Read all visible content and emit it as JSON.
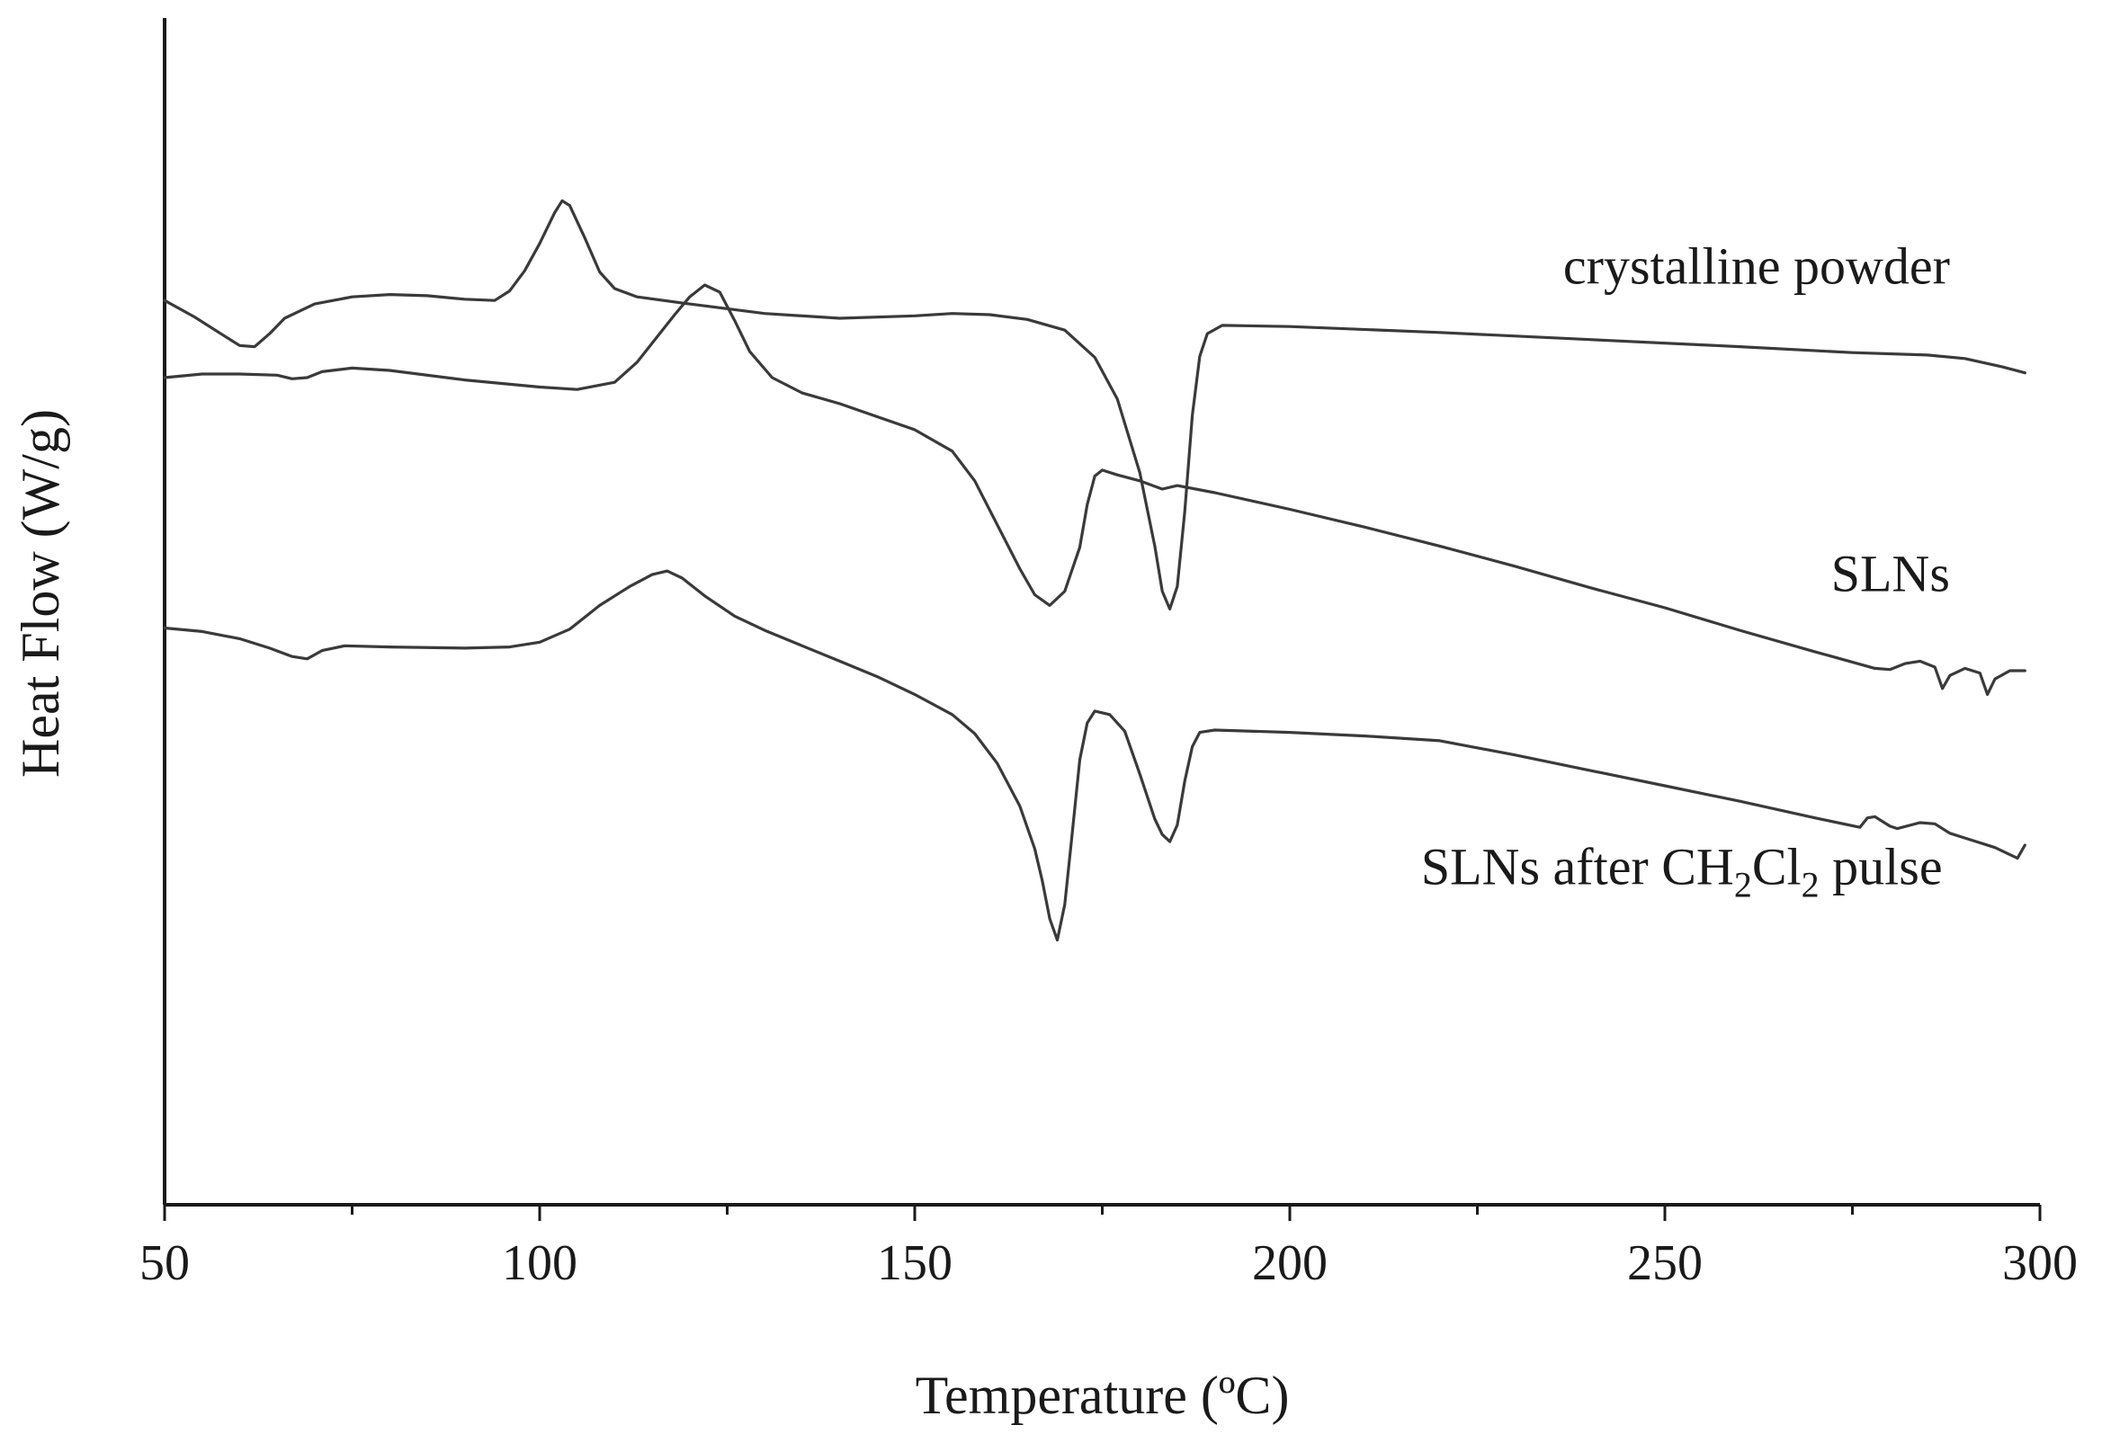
{
  "chart_data": {
    "type": "line",
    "xlabel": "Temperature (ºC)",
    "ylabel": "Heat Flow (W/g)",
    "xlim": [
      50,
      300
    ],
    "ylim": [
      0,
      100
    ],
    "x_ticks": [
      50,
      100,
      150,
      200,
      250,
      300
    ],
    "y_ticks_shown": false,
    "grid": false,
    "legend": "none",
    "series": [
      {
        "name": "crystalline powder",
        "label_parts": [
          "crystalline powder"
        ],
        "color": "#3a3a3a",
        "points": [
          [
            50,
            76.2
          ],
          [
            54,
            74.8
          ],
          [
            58,
            73.2
          ],
          [
            60,
            72.4
          ],
          [
            62,
            72.3
          ],
          [
            64,
            73.4
          ],
          [
            66,
            74.7
          ],
          [
            70,
            75.9
          ],
          [
            75,
            76.5
          ],
          [
            80,
            76.7
          ],
          [
            85,
            76.6
          ],
          [
            90,
            76.3
          ],
          [
            94,
            76.2
          ],
          [
            96,
            77.0
          ],
          [
            98,
            78.7
          ],
          [
            100,
            81.0
          ],
          [
            102,
            83.6
          ],
          [
            103,
            84.6
          ],
          [
            104,
            84.2
          ],
          [
            106,
            81.5
          ],
          [
            108,
            78.6
          ],
          [
            110,
            77.2
          ],
          [
            113,
            76.5
          ],
          [
            120,
            75.9
          ],
          [
            130,
            75.1
          ],
          [
            140,
            74.7
          ],
          [
            150,
            74.9
          ],
          [
            155,
            75.1
          ],
          [
            160,
            75.0
          ],
          [
            165,
            74.6
          ],
          [
            170,
            73.7
          ],
          [
            174,
            71.4
          ],
          [
            177,
            67.9
          ],
          [
            180,
            61.7
          ],
          [
            182,
            55.5
          ],
          [
            183,
            51.7
          ],
          [
            184,
            50.2
          ],
          [
            185,
            52.1
          ],
          [
            186,
            58.4
          ],
          [
            187,
            66.5
          ],
          [
            188,
            71.5
          ],
          [
            189,
            73.4
          ],
          [
            191,
            74.1
          ],
          [
            200,
            74.0
          ],
          [
            220,
            73.5
          ],
          [
            240,
            72.9
          ],
          [
            260,
            72.3
          ],
          [
            275,
            71.8
          ],
          [
            285,
            71.6
          ],
          [
            290,
            71.3
          ],
          [
            295,
            70.6
          ],
          [
            298,
            70.1
          ]
        ]
      },
      {
        "name": "SLNs",
        "label_parts": [
          "SLNs"
        ],
        "color": "#3a3a3a",
        "points": [
          [
            50,
            69.7
          ],
          [
            55,
            70.0
          ],
          [
            60,
            70.0
          ],
          [
            65,
            69.9
          ],
          [
            67,
            69.6
          ],
          [
            69,
            69.7
          ],
          [
            71,
            70.2
          ],
          [
            75,
            70.5
          ],
          [
            80,
            70.3
          ],
          [
            90,
            69.5
          ],
          [
            100,
            68.9
          ],
          [
            105,
            68.7
          ],
          [
            110,
            69.3
          ],
          [
            113,
            71.0
          ],
          [
            116,
            73.4
          ],
          [
            118,
            75.0
          ],
          [
            120,
            76.5
          ],
          [
            122,
            77.5
          ],
          [
            124,
            76.9
          ],
          [
            126,
            74.5
          ],
          [
            128,
            71.9
          ],
          [
            131,
            69.7
          ],
          [
            135,
            68.4
          ],
          [
            140,
            67.5
          ],
          [
            145,
            66.4
          ],
          [
            150,
            65.3
          ],
          [
            155,
            63.5
          ],
          [
            158,
            61.0
          ],
          [
            161,
            57.3
          ],
          [
            164,
            53.6
          ],
          [
            166,
            51.4
          ],
          [
            168,
            50.5
          ],
          [
            170,
            51.7
          ],
          [
            172,
            55.4
          ],
          [
            173,
            59.0
          ],
          [
            174,
            61.4
          ],
          [
            175,
            61.9
          ],
          [
            177,
            61.5
          ],
          [
            180,
            61.0
          ],
          [
            183,
            60.3
          ],
          [
            185,
            60.6
          ],
          [
            190,
            60.0
          ],
          [
            200,
            58.6
          ],
          [
            210,
            57.1
          ],
          [
            220,
            55.5
          ],
          [
            230,
            53.8
          ],
          [
            240,
            52.0
          ],
          [
            250,
            50.3
          ],
          [
            260,
            48.4
          ],
          [
            270,
            46.6
          ],
          [
            278,
            45.2
          ],
          [
            280,
            45.1
          ],
          [
            282,
            45.6
          ],
          [
            284,
            45.8
          ],
          [
            286,
            45.3
          ],
          [
            287,
            43.5
          ],
          [
            288,
            44.6
          ],
          [
            290,
            45.2
          ],
          [
            292,
            44.8
          ],
          [
            293,
            43.0
          ],
          [
            294,
            44.3
          ],
          [
            296,
            45.0
          ],
          [
            298,
            45.0
          ]
        ]
      },
      {
        "name": "SLNs after CH2Cl2 pulse",
        "label_parts": [
          "SLNs after CH",
          "2",
          "Cl",
          "2",
          " pulse"
        ],
        "color": "#3a3a3a",
        "points": [
          [
            50,
            48.6
          ],
          [
            55,
            48.3
          ],
          [
            60,
            47.7
          ],
          [
            64,
            46.9
          ],
          [
            67,
            46.2
          ],
          [
            69,
            46.0
          ],
          [
            71,
            46.7
          ],
          [
            74,
            47.1
          ],
          [
            80,
            47.0
          ],
          [
            90,
            46.9
          ],
          [
            96,
            47.0
          ],
          [
            100,
            47.4
          ],
          [
            104,
            48.5
          ],
          [
            108,
            50.5
          ],
          [
            112,
            52.1
          ],
          [
            115,
            53.1
          ],
          [
            117,
            53.4
          ],
          [
            119,
            52.8
          ],
          [
            122,
            51.3
          ],
          [
            126,
            49.6
          ],
          [
            130,
            48.4
          ],
          [
            135,
            47.1
          ],
          [
            140,
            45.8
          ],
          [
            145,
            44.5
          ],
          [
            150,
            43.0
          ],
          [
            155,
            41.3
          ],
          [
            158,
            39.7
          ],
          [
            161,
            37.2
          ],
          [
            164,
            33.6
          ],
          [
            166,
            30.0
          ],
          [
            167,
            27.3
          ],
          [
            168,
            24.1
          ],
          [
            169,
            22.3
          ],
          [
            170,
            25.3
          ],
          [
            171,
            31.3
          ],
          [
            172,
            37.5
          ],
          [
            173,
            40.6
          ],
          [
            174,
            41.6
          ],
          [
            176,
            41.3
          ],
          [
            178,
            39.9
          ],
          [
            180,
            36.3
          ],
          [
            182,
            32.5
          ],
          [
            183,
            31.2
          ],
          [
            184,
            30.6
          ],
          [
            185,
            32.0
          ],
          [
            186,
            35.7
          ],
          [
            187,
            38.6
          ],
          [
            188,
            39.8
          ],
          [
            190,
            40.0
          ],
          [
            200,
            39.8
          ],
          [
            210,
            39.5
          ],
          [
            220,
            39.1
          ],
          [
            230,
            37.9
          ],
          [
            240,
            36.6
          ],
          [
            250,
            35.3
          ],
          [
            260,
            34.0
          ],
          [
            270,
            32.6
          ],
          [
            276,
            31.8
          ],
          [
            277,
            32.6
          ],
          [
            278,
            32.7
          ],
          [
            280,
            31.9
          ],
          [
            281,
            31.7
          ],
          [
            284,
            32.2
          ],
          [
            286,
            32.1
          ],
          [
            288,
            31.3
          ],
          [
            290,
            30.9
          ],
          [
            292,
            30.5
          ],
          [
            294,
            30.1
          ],
          [
            296,
            29.5
          ],
          [
            297,
            29.2
          ],
          [
            298,
            30.3
          ]
        ]
      }
    ],
    "annotations": [
      {
        "series": 0,
        "x": 288,
        "y": 77.6
      },
      {
        "series": 1,
        "x": 288,
        "y": 51.7
      },
      {
        "series": 2,
        "x": 287,
        "y": 27.0
      }
    ]
  }
}
